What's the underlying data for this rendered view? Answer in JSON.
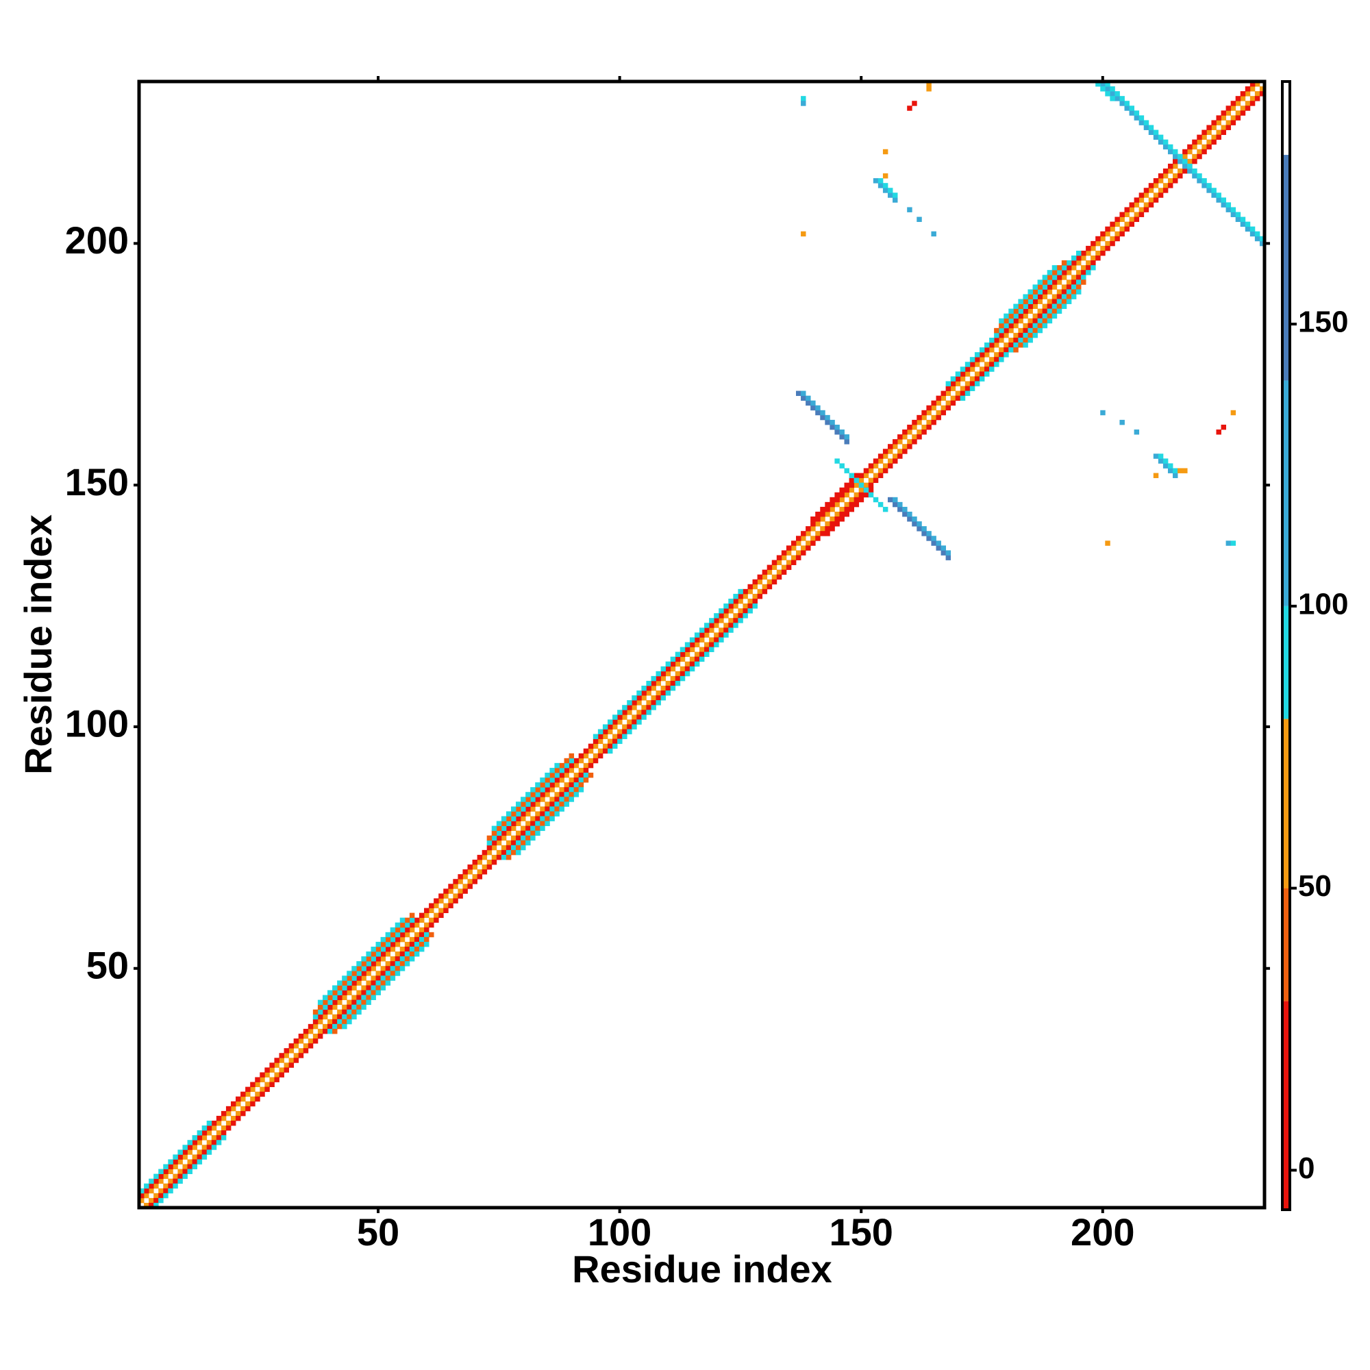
{
  "chart_data": {
    "type": "heatmap",
    "xlabel": "Residue index",
    "ylabel": "Residue index",
    "xlim": [
      0.5,
      233.5
    ],
    "ylim": [
      0.5,
      233.5
    ],
    "xticks": [
      50,
      100,
      150,
      200
    ],
    "yticks": [
      50,
      100,
      150,
      200
    ],
    "clim": [
      -7,
      193
    ],
    "cticks": [
      0,
      50,
      100,
      150
    ],
    "colorscale": [
      {
        "from": -7,
        "to": 30,
        "color": "#e8140c"
      },
      {
        "from": 30,
        "to": 50,
        "color": "#f0600f"
      },
      {
        "from": 50,
        "to": 80,
        "color": "#f59a12"
      },
      {
        "from": 80,
        "to": 100,
        "color": "#22d8e2"
      },
      {
        "from": 100,
        "to": 140,
        "color": "#3aaad6"
      },
      {
        "from": 140,
        "to": 180,
        "color": "#4a7cba"
      },
      {
        "from": 180,
        "to": 193,
        "color": "#ffffff"
      }
    ],
    "runs": [
      {
        "x": 1,
        "y": 1,
        "n": 233,
        "value": 185
      },
      {
        "x": 1,
        "y": 2,
        "n": 232,
        "value": 65
      },
      {
        "x": 2,
        "y": 1,
        "n": 232,
        "value": 65
      },
      {
        "x": 1,
        "y": 3,
        "n": 231,
        "value": 20
      },
      {
        "x": 3,
        "y": 1,
        "n": 231,
        "value": 20
      },
      {
        "x": 1,
        "y": 4,
        "n": 15,
        "value": 90
      },
      {
        "x": 4,
        "y": 1,
        "n": 15,
        "value": 90
      },
      {
        "x": 37,
        "y": 40,
        "n": 21,
        "value": 90
      },
      {
        "x": 40,
        "y": 37,
        "n": 21,
        "value": 90
      },
      {
        "x": 73,
        "y": 76,
        "n": 18,
        "value": 90
      },
      {
        "x": 76,
        "y": 73,
        "n": 18,
        "value": 90
      },
      {
        "x": 95,
        "y": 98,
        "n": 31,
        "value": 90
      },
      {
        "x": 98,
        "y": 95,
        "n": 31,
        "value": 90
      },
      {
        "x": 168,
        "y": 171,
        "n": 28,
        "value": 90
      },
      {
        "x": 171,
        "y": 168,
        "n": 28,
        "value": 90
      },
      {
        "x": 140,
        "y": 143,
        "n": 10,
        "value": 15
      },
      {
        "x": 143,
        "y": 140,
        "n": 10,
        "value": 15
      },
      {
        "x": 37,
        "y": 41,
        "n": 21,
        "value": 40
      },
      {
        "x": 41,
        "y": 37,
        "n": 21,
        "value": 40
      },
      {
        "x": 73,
        "y": 77,
        "n": 18,
        "value": 40
      },
      {
        "x": 77,
        "y": 73,
        "n": 18,
        "value": 40
      },
      {
        "x": 178,
        "y": 182,
        "n": 15,
        "value": 40
      },
      {
        "x": 182,
        "y": 178,
        "n": 15,
        "value": 40
      },
      {
        "x": 38,
        "y": 43,
        "n": 18,
        "value": 95
      },
      {
        "x": 43,
        "y": 38,
        "n": 18,
        "value": 95
      },
      {
        "x": 74,
        "y": 79,
        "n": 14,
        "value": 95
      },
      {
        "x": 79,
        "y": 74,
        "n": 14,
        "value": 95
      },
      {
        "x": 179,
        "y": 184,
        "n": 12,
        "value": 95
      },
      {
        "x": 184,
        "y": 179,
        "n": 12,
        "value": 95
      },
      {
        "x": 137,
        "y": 169,
        "n": 11,
        "value": 145,
        "direction": "antidiagonal"
      },
      {
        "x": 138,
        "y": 169,
        "n": 10,
        "value": 120,
        "direction": "antidiagonal"
      },
      {
        "x": 156,
        "y": 147,
        "n": 13,
        "value": 145,
        "direction": "antidiagonal"
      },
      {
        "x": 157,
        "y": 147,
        "n": 12,
        "value": 125,
        "direction": "antidiagonal"
      },
      {
        "x": 200,
        "y": 233,
        "n": 34,
        "value": 140,
        "direction": "antidiagonal"
      },
      {
        "x": 201,
        "y": 233,
        "n": 33,
        "value": 100,
        "direction": "antidiagonal"
      },
      {
        "x": 199,
        "y": 233,
        "n": 4,
        "value": 95,
        "direction": "antidiagonal"
      },
      {
        "x": 145,
        "y": 155,
        "n": 11,
        "value": 92,
        "direction": "antidiagonal"
      },
      {
        "x": 153,
        "y": 213,
        "n": 5,
        "value": 120,
        "direction": "antidiagonal"
      },
      {
        "x": 154,
        "y": 213,
        "n": 4,
        "value": 95,
        "direction": "antidiagonal"
      },
      {
        "x": 211,
        "y": 156,
        "n": 5,
        "value": 120,
        "direction": "antidiagonal"
      },
      {
        "x": 212,
        "y": 156,
        "n": 4,
        "value": 95,
        "direction": "antidiagonal"
      },
      {
        "x": 160,
        "y": 207,
        "n": 1,
        "value": 130
      },
      {
        "x": 162,
        "y": 205,
        "n": 1,
        "value": 130
      },
      {
        "x": 165,
        "y": 202,
        "n": 1,
        "value": 130
      },
      {
        "x": 200,
        "y": 165,
        "n": 1,
        "value": 130
      },
      {
        "x": 204,
        "y": 163,
        "n": 1,
        "value": 130
      },
      {
        "x": 207,
        "y": 161,
        "n": 1,
        "value": 130
      },
      {
        "x": 138,
        "y": 230,
        "n": 1,
        "value": 95
      },
      {
        "x": 138,
        "y": 229,
        "n": 1,
        "value": 130
      },
      {
        "x": 138,
        "y": 202,
        "n": 1,
        "value": 70
      },
      {
        "x": 155,
        "y": 219,
        "n": 1,
        "value": 65
      },
      {
        "x": 160,
        "y": 228,
        "n": 1,
        "value": 10
      },
      {
        "x": 161,
        "y": 229,
        "n": 1,
        "value": 10
      },
      {
        "x": 164,
        "y": 232,
        "n": 1,
        "value": 70
      },
      {
        "x": 164,
        "y": 233,
        "n": 1,
        "value": 60
      },
      {
        "x": 201,
        "y": 138,
        "n": 1,
        "value": 65
      },
      {
        "x": 226,
        "y": 138,
        "n": 1,
        "value": 130
      },
      {
        "x": 227,
        "y": 138,
        "n": 1,
        "value": 95
      },
      {
        "x": 224,
        "y": 161,
        "n": 1,
        "value": 10
      },
      {
        "x": 225,
        "y": 162,
        "n": 1,
        "value": 10
      },
      {
        "x": 227,
        "y": 165,
        "n": 1,
        "value": 70
      },
      {
        "x": 216,
        "y": 153,
        "n": 1,
        "value": 60
      },
      {
        "x": 217,
        "y": 153,
        "n": 1,
        "value": 60
      },
      {
        "x": 211,
        "y": 152,
        "n": 1,
        "value": 65
      },
      {
        "x": 155,
        "y": 214,
        "n": 1,
        "value": 55
      }
    ]
  }
}
